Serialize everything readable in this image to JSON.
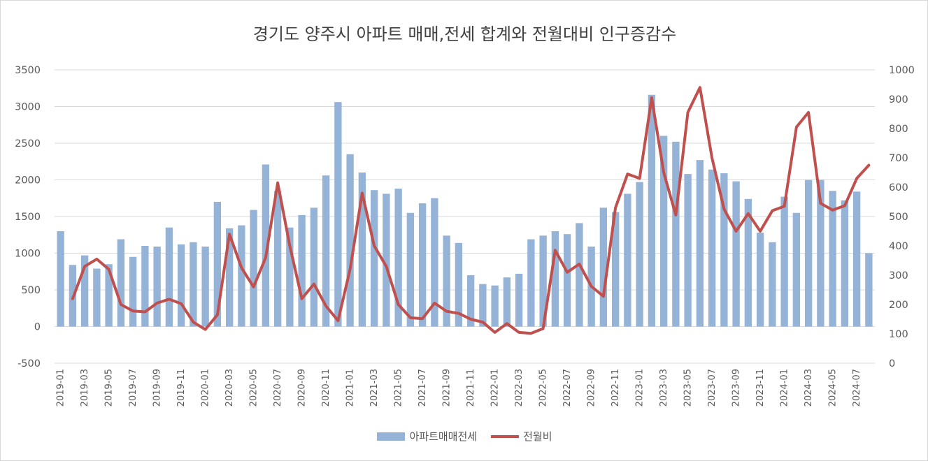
{
  "chart_data": {
    "type": "bar",
    "title": "경기도 양주시 아파트 매매,전세 합계와 전월대비 인구증감수",
    "xlabel": "",
    "ylabel": "",
    "categories": [
      "2019-01",
      "2019-02",
      "2019-03",
      "2019-04",
      "2019-05",
      "2019-06",
      "2019-07",
      "2019-08",
      "2019-09",
      "2019-10",
      "2019-11",
      "2019-12",
      "2020-01",
      "2020-02",
      "2020-03",
      "2020-04",
      "2020-05",
      "2020-06",
      "2020-07",
      "2020-08",
      "2020-09",
      "2020-10",
      "2020-11",
      "2020-12",
      "2021-01",
      "2021-02",
      "2021-03",
      "2021-04",
      "2021-05",
      "2021-06",
      "2021-07",
      "2021-08",
      "2021-09",
      "2021-10",
      "2021-11",
      "2021-12",
      "2022-01",
      "2022-02",
      "2022-03",
      "2022-04",
      "2022-05",
      "2022-06",
      "2022-07",
      "2022-08",
      "2022-09",
      "2022-10",
      "2022-11",
      "2022-12",
      "2023-01",
      "2023-02",
      "2023-03",
      "2023-04",
      "2023-05",
      "2023-06",
      "2023-07",
      "2023-08",
      "2023-09",
      "2023-10",
      "2023-11",
      "2023-12",
      "2024-01",
      "2024-02",
      "2024-03",
      "2024-04",
      "2024-05",
      "2024-06",
      "2024-07",
      "2024-08"
    ],
    "x_tick_labels": [
      "2019-01",
      "2019-03",
      "2019-05",
      "2019-07",
      "2019-09",
      "2019-11",
      "2020-01",
      "2020-03",
      "2020-05",
      "2020-07",
      "2020-09",
      "2020-11",
      "2021-01",
      "2021-03",
      "2021-05",
      "2021-07",
      "2021-09",
      "2021-11",
      "2022-01",
      "2022-03",
      "2022-05",
      "2022-07",
      "2022-09",
      "2022-11",
      "2023-01",
      "2023-03",
      "2023-05",
      "2023-07",
      "2023-09",
      "2023-11",
      "2024-01",
      "2024-03",
      "2024-05",
      "2024-07"
    ],
    "series": [
      {
        "name": "아파트매매전세",
        "type": "bar",
        "axis": "left",
        "color": "#95b3d7",
        "values": [
          1300,
          840,
          970,
          790,
          850,
          1190,
          950,
          1100,
          1090,
          1350,
          1120,
          1150,
          1090,
          1700,
          1340,
          1380,
          1590,
          2210,
          1850,
          1350,
          1520,
          1620,
          2060,
          3060,
          2350,
          2100,
          1860,
          1810,
          1880,
          1550,
          1680,
          1750,
          1240,
          1140,
          700,
          580,
          560,
          670,
          720,
          1190,
          1240,
          1300,
          1260,
          1410,
          1090,
          1620,
          1560,
          1810,
          1970,
          3160,
          2600,
          2520,
          2080,
          2270,
          2140,
          2090,
          1980,
          1740,
          1280,
          1150,
          1770,
          1550,
          2000,
          2000,
          1850,
          1720,
          1840,
          1000
        ]
      },
      {
        "name": "전월비",
        "type": "line",
        "axis": "right",
        "color": "#c0504d",
        "values": [
          null,
          220,
          330,
          355,
          320,
          200,
          178,
          175,
          205,
          218,
          203,
          140,
          115,
          165,
          440,
          325,
          260,
          360,
          615,
          400,
          220,
          270,
          195,
          145,
          320,
          580,
          400,
          330,
          200,
          155,
          152,
          205,
          177,
          170,
          150,
          140,
          105,
          135,
          105,
          102,
          118,
          385,
          310,
          338,
          262,
          228,
          530,
          645,
          630,
          905,
          650,
          505,
          855,
          940,
          700,
          525,
          450,
          510,
          450,
          520,
          535,
          805,
          855,
          545,
          522,
          537,
          630,
          675
        ]
      }
    ],
    "y_left_ticks": [
      "3500",
      "3000",
      "2500",
      "2000",
      "1500",
      "1000",
      "500",
      "0",
      "-500"
    ],
    "y_right_ticks": [
      "1000",
      "900",
      "800",
      "700",
      "600",
      "500",
      "400",
      "300",
      "200",
      "100",
      "0"
    ],
    "ylim_left": [
      -500,
      3500
    ],
    "ylim_right": [
      0,
      1000
    ],
    "grid": true,
    "legend_position": "bottom"
  },
  "legend": {
    "bar_label": "아파트매매전세",
    "line_label": "전월비"
  }
}
